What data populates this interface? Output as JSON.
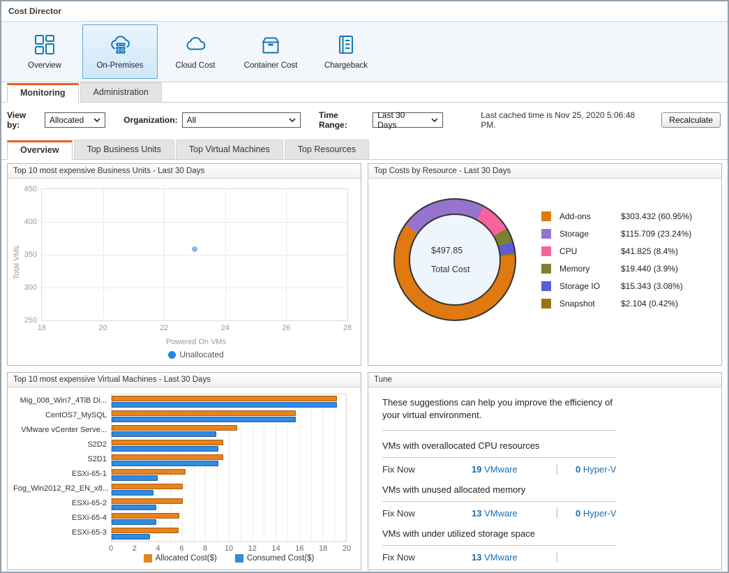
{
  "window": {
    "title": "Cost Director"
  },
  "toolbar": {
    "items": [
      {
        "label": "Overview",
        "icon": "dashboard-icon",
        "selected": false
      },
      {
        "label": "On-Premises",
        "icon": "cloud-servers-icon",
        "selected": true
      },
      {
        "label": "Cloud Cost",
        "icon": "cloud-icon",
        "selected": false
      },
      {
        "label": "Container Cost",
        "icon": "container-box-icon",
        "selected": false
      },
      {
        "label": "Chargeback",
        "icon": "ledger-book-icon",
        "selected": false
      }
    ]
  },
  "main_tabs": {
    "monitoring": "Monitoring",
    "administration": "Administration"
  },
  "filter_bar": {
    "view_by_label": "View by:",
    "view_by_value": "Allocated",
    "organization_label": "Organization:",
    "organization_value": "All",
    "time_range_label": "Time Range:",
    "time_range_value": "Last 30 Days",
    "last_cached_text": "Last cached time is Nov 25, 2020 5:06:48 PM.",
    "recalculate_label": "Recalculate"
  },
  "sub_tabs": {
    "overview": "Overview",
    "top_business_units": "Top Business Units",
    "top_virtual_machines": "Top Virtual Machines",
    "top_resources": "Top Resources"
  },
  "panels": {
    "business_units_title": "Top 10 most expensive Business Units - Last 30 Days",
    "resources_title": "Top Costs by Resource - Last 30 Days",
    "virtual_machines_title": "Top 10 most expensive Virtual Machines - Last 30 Days",
    "tune_title": "Tune"
  },
  "tune": {
    "intro": "These suggestions can help you improve the efficiency of your virtual environment.",
    "suggestions": [
      {
        "label": "VMs with overallocated CPU resources",
        "fix_label": "Fix Now",
        "vmware_count": "19",
        "vmware_label": "VMware",
        "hyperv_count": "0",
        "hyperv_label": "Hyper-V"
      },
      {
        "label": "VMs with unused allocated memory",
        "fix_label": "Fix Now",
        "vmware_count": "13",
        "vmware_label": "VMware",
        "hyperv_count": "0",
        "hyperv_label": "Hyper-V"
      },
      {
        "label": "VMs with under utilized storage space",
        "fix_label": "Fix Now",
        "vmware_count": "13",
        "vmware_label": "VMware",
        "hyperv_count": "",
        "hyperv_label": ""
      }
    ]
  },
  "colors": {
    "accent_orange": "#ee5a1e",
    "icon_blue": "#1377b6",
    "link_blue": "#1b6db2",
    "selected_tile_border": "#5ba7d6"
  },
  "chart_data": [
    {
      "type": "scatter",
      "title": "Top 10 most expensive Business Units - Last 30 Days",
      "xlabel": "Powered On VMs",
      "ylabel": "Total VMs",
      "xlim": [
        18,
        28
      ],
      "ylim": [
        250,
        450
      ],
      "xticks": [
        18,
        20,
        22,
        24,
        26,
        28
      ],
      "yticks": [
        450,
        400,
        350,
        300,
        250
      ],
      "grid": true,
      "legend_position": "bottom",
      "series": [
        {
          "name": "Unallocated",
          "legend_color": "#1f87e5",
          "point_color": "#85b8f0",
          "points": [
            {
              "x": 23,
              "y": 358
            }
          ]
        }
      ]
    },
    {
      "type": "pie",
      "subtype": "donut",
      "title": "Top Costs by Resource - Last 30 Days",
      "center_value": "$497.85",
      "center_label": "Total Cost",
      "start_angle_deg": 305,
      "draw_order": [
        1,
        2,
        3,
        4,
        5,
        0
      ],
      "legend_position": "right",
      "slices": [
        {
          "label": "Add-ons",
          "value_text": "$303.432 (60.95%)",
          "value": 303.432,
          "pct": 60.95,
          "color": "#e0790f"
        },
        {
          "label": "Storage",
          "value_text": "$115.709 (23.24%)",
          "value": 115.709,
          "pct": 23.24,
          "color": "#9673ce"
        },
        {
          "label": "CPU",
          "value_text": "$41.825 (8.4%)",
          "value": 41.825,
          "pct": 8.4,
          "color": "#f8639f"
        },
        {
          "label": "Memory",
          "value_text": "$19.440 (3.9%)",
          "value": 19.44,
          "pct": 3.9,
          "color": "#7c8033"
        },
        {
          "label": "Storage IO",
          "value_text": "$15.343 (3.08%)",
          "value": 15.343,
          "pct": 3.08,
          "color": "#5a5cd8"
        },
        {
          "label": "Snapshot",
          "value_text": "$2.104 (0.42%)",
          "value": 2.104,
          "pct": 0.42,
          "color": "#9a7410"
        }
      ]
    },
    {
      "type": "bar",
      "orientation": "horizontal",
      "title": "Top 10 most expensive Virtual Machines - Last 30 Days",
      "xlim": [
        0,
        20
      ],
      "xticks": [
        0,
        2,
        4,
        6,
        8,
        10,
        12,
        14,
        16,
        18,
        20
      ],
      "grid": true,
      "legend_position": "bottom",
      "categories": [
        "Mig_008_Win7_4TiB Di...",
        "CentOS7_MySQL",
        "VMware vCenter Serve...",
        "S2D2",
        "S2D1",
        "ESXi-65-1",
        "Fog_Win2012_R2_EN_x8...",
        "ESXi-65-2",
        "ESXi-65-4",
        "ESXi-65-3"
      ],
      "series": [
        {
          "name": "Allocated Cost($)",
          "color": "#e8831d",
          "border_color": "#a85c0a",
          "values": [
            19.2,
            15.7,
            10.7,
            9.5,
            9.5,
            6.3,
            6.1,
            6.1,
            5.8,
            5.7
          ]
        },
        {
          "name": "Consumed Cost($)",
          "color": "#2f8be2",
          "border_color": "#1a5fa0",
          "values": [
            19.2,
            15.7,
            8.9,
            9.1,
            9.1,
            3.9,
            3.6,
            3.8,
            3.8,
            3.3
          ]
        }
      ]
    }
  ]
}
